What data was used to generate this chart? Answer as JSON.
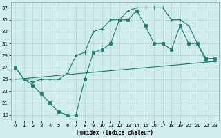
{
  "line1_x": [
    0,
    1,
    2,
    3,
    4,
    5,
    6,
    7,
    8,
    9,
    10,
    11,
    12,
    13,
    14,
    15,
    16,
    17,
    18,
    19,
    20,
    21,
    22,
    23
  ],
  "line1_y": [
    27,
    25,
    24.5,
    25,
    25,
    25,
    26,
    29,
    29.5,
    33,
    33.5,
    35,
    35,
    36.5,
    37,
    37,
    37,
    37,
    35,
    35,
    34,
    31,
    28,
    28
  ],
  "line2_x": [
    0,
    23
  ],
  "line2_y": [
    25,
    28
  ],
  "line3_x": [
    0,
    1,
    2,
    3,
    4,
    5,
    6,
    7,
    8,
    9,
    10,
    11,
    12,
    13,
    14,
    15,
    16,
    17,
    18,
    19,
    20,
    21,
    22,
    23
  ],
  "line3_y": [
    27,
    25,
    24,
    22.5,
    21,
    19.5,
    19,
    19,
    25,
    29.5,
    30,
    31,
    35,
    35,
    36.5,
    34,
    31,
    31,
    30,
    34,
    31,
    31,
    28.5,
    28.5
  ],
  "color": "#1a7a6e",
  "bg_color": "#d0ecec",
  "grid_color": "#b0d4d4",
  "xlabel": "Humidex (Indice chaleur)",
  "xlim": [
    -0.5,
    23.5
  ],
  "ylim": [
    18,
    38
  ],
  "yticks": [
    19,
    21,
    23,
    25,
    27,
    29,
    31,
    33,
    35,
    37
  ],
  "xticks": [
    0,
    1,
    2,
    3,
    4,
    5,
    6,
    7,
    8,
    9,
    10,
    11,
    12,
    13,
    14,
    15,
    16,
    17,
    18,
    19,
    20,
    21,
    22,
    23
  ]
}
